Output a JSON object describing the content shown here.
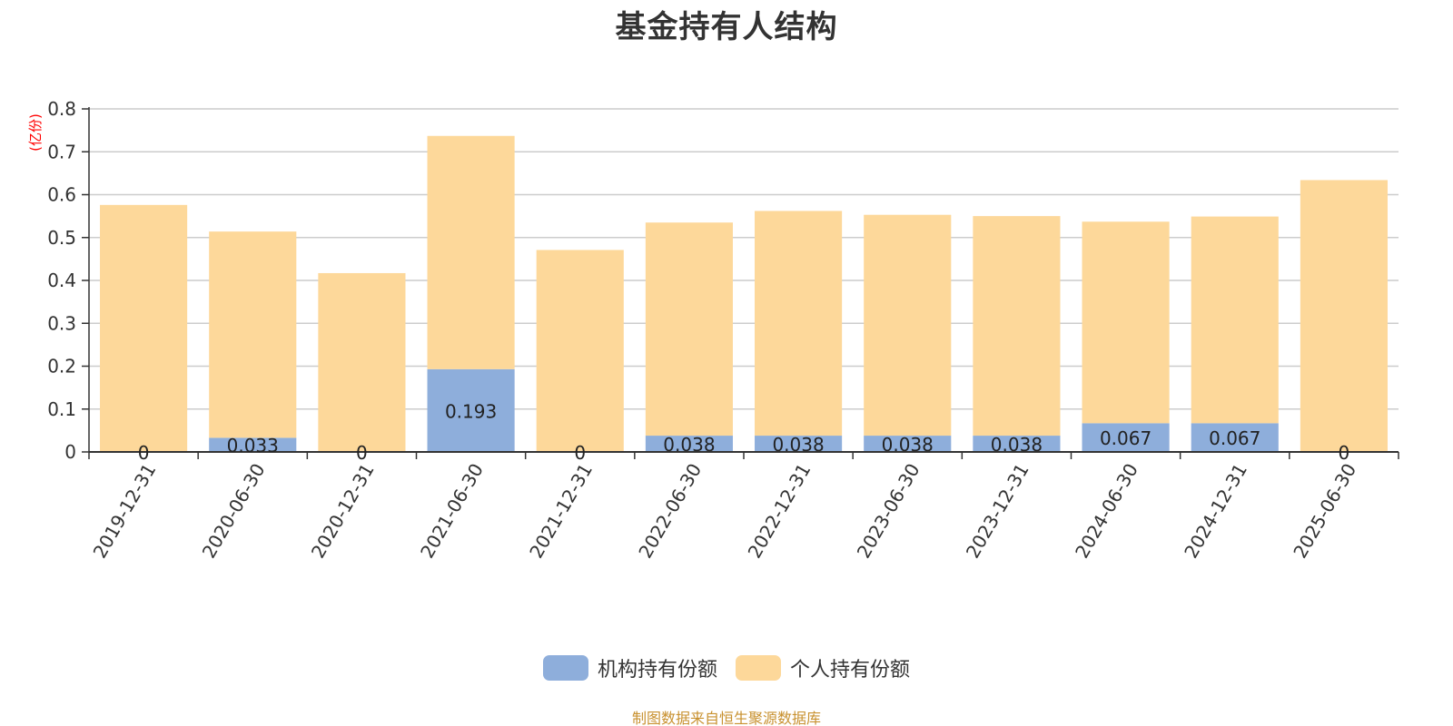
{
  "title": "基金持有人结构",
  "source_note": "制图数据来自恒生聚源数据库",
  "colors": {
    "institutional": "#8eaedb",
    "individual": "#fdd89a",
    "grid": "#cccccc",
    "axis": "#333333",
    "unit": "#ff0000"
  },
  "legend": [
    {
      "label": "机构持有份额",
      "color": "#8eaedb"
    },
    {
      "label": "个人持有份额",
      "color": "#fdd89a"
    }
  ],
  "chart_data": {
    "type": "bar",
    "stacked": true,
    "title": "基金持有人结构",
    "ylabel": "(亿份)",
    "xlabel": "",
    "ylim": [
      0,
      0.8
    ],
    "yticks": [
      0,
      0.1,
      0.2,
      0.3,
      0.4,
      0.5,
      0.6,
      0.7,
      0.8
    ],
    "grid": true,
    "legend_position": "bottom",
    "categories": [
      "2019-12-31",
      "2020-06-30",
      "2020-12-31",
      "2021-06-30",
      "2021-12-31",
      "2022-06-30",
      "2022-12-31",
      "2023-06-30",
      "2023-12-31",
      "2024-06-30",
      "2024-12-31",
      "2025-06-30"
    ],
    "series": [
      {
        "name": "机构持有份额",
        "values": [
          0,
          0.033,
          0,
          0.193,
          0,
          0.038,
          0.038,
          0.038,
          0.038,
          0.067,
          0.067,
          0
        ],
        "labels": [
          "0",
          "0.033",
          "0",
          "0.193",
          "0",
          "0.038",
          "0.038",
          "0.038",
          "0.038",
          "0.067",
          "0.067",
          "0"
        ]
      },
      {
        "name": "个人持有份额",
        "values": [
          0.576,
          0.481,
          0.417,
          0.544,
          0.471,
          0.497,
          0.524,
          0.515,
          0.512,
          0.47,
          0.482,
          0.634
        ]
      }
    ]
  }
}
